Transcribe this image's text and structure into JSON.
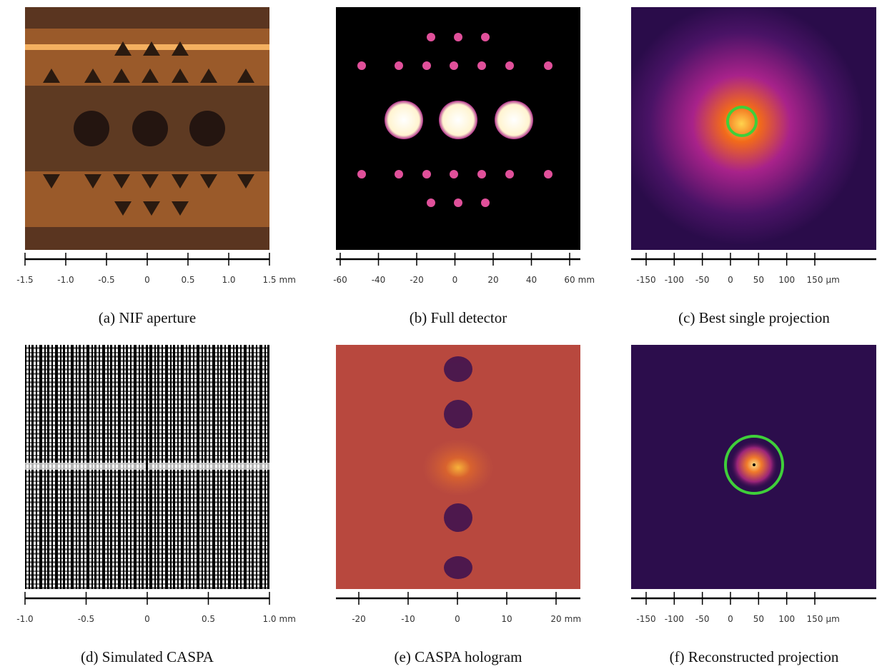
{
  "panels": [
    {
      "caption": "(a) NIF aperture",
      "scale": {
        "ticks": [
          "-1.5",
          "-1.0",
          "-0.5",
          "0",
          "0.5",
          "1.0",
          "1.5"
        ],
        "unit": "mm"
      }
    },
    {
      "caption": "(b) Full detector",
      "scale": {
        "ticks": [
          "-60",
          "-40",
          "-20",
          "0",
          "20",
          "40",
          "60"
        ],
        "unit": "mm"
      }
    },
    {
      "caption": "(c) Best single projection",
      "scale": {
        "ticks": [
          "-150",
          "-100",
          "-50",
          "0",
          "50",
          "100",
          "150"
        ],
        "unit": "µm"
      }
    },
    {
      "caption": "(d) Simulated CASPA",
      "scale": {
        "ticks": [
          "-1.0",
          "-0.5",
          "0",
          "0.5",
          "1.0"
        ],
        "unit": "mm"
      }
    },
    {
      "caption": "(e) CASPA hologram",
      "scale": {
        "ticks": [
          "-20",
          "-10",
          "0",
          "10",
          "20"
        ],
        "unit": "mm"
      }
    },
    {
      "caption": "(f) Reconstructed projection",
      "scale": {
        "ticks": [
          "-150",
          "-100",
          "-50",
          "0",
          "50",
          "100",
          "150"
        ],
        "unit": "µm"
      }
    }
  ]
}
